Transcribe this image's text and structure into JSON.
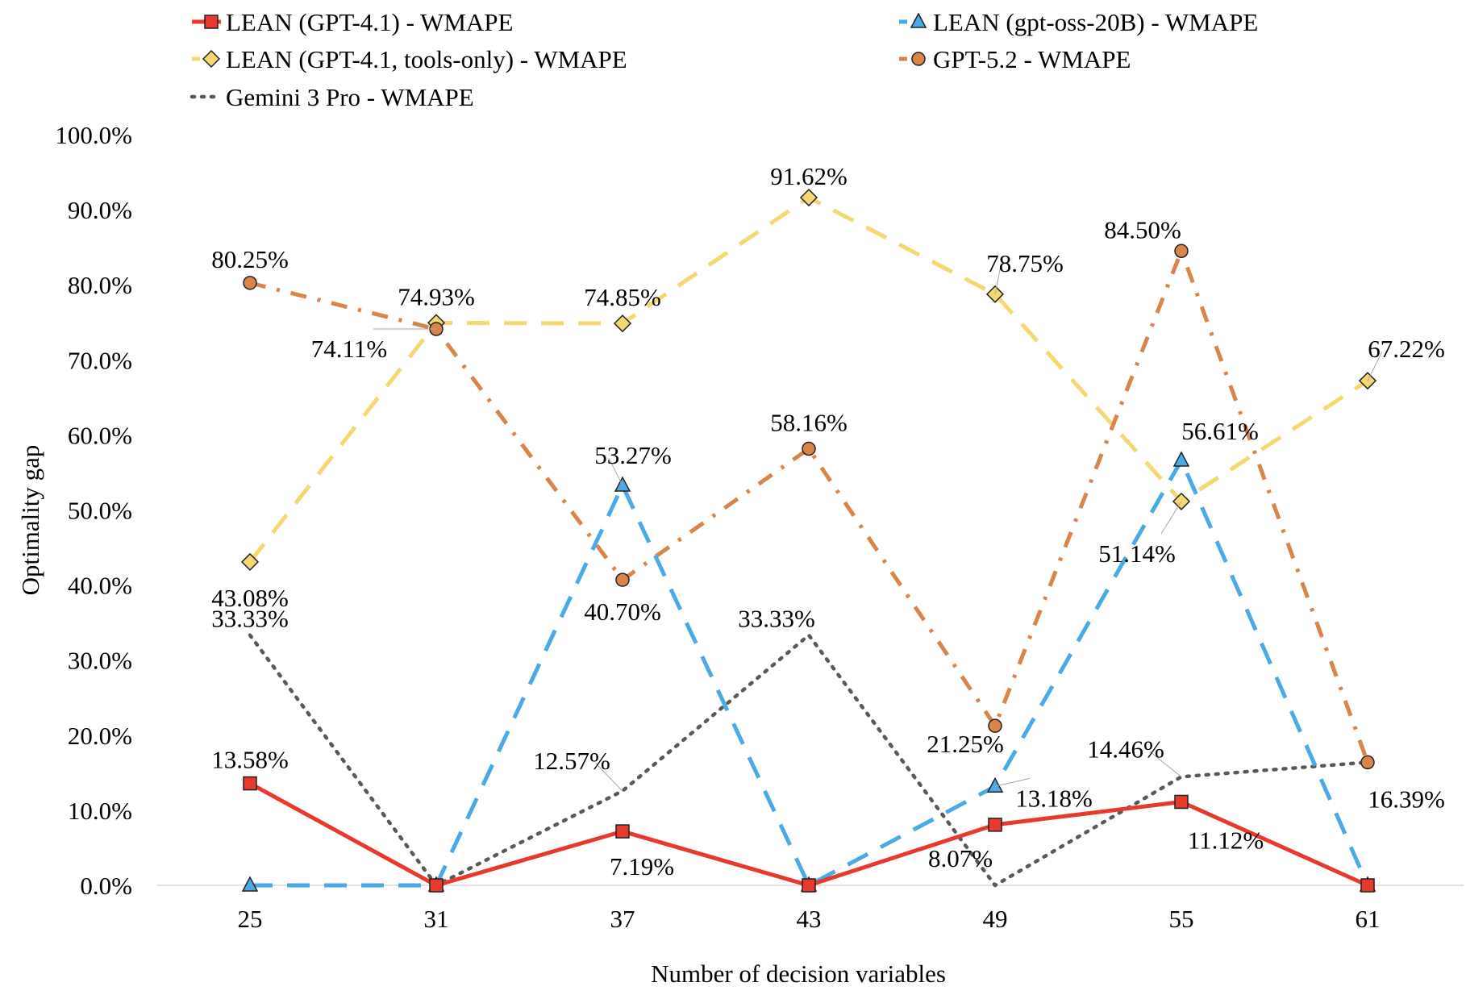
{
  "chart_data": {
    "type": "line",
    "title": "",
    "xlabel": "Number of decision variables",
    "ylabel": "Optimality gap",
    "categories": [
      "25",
      "31",
      "37",
      "43",
      "49",
      "55",
      "61"
    ],
    "ylim": [
      0,
      100
    ],
    "yticks": [
      "0.0%",
      "10.0%",
      "20.0%",
      "30.0%",
      "40.0%",
      "50.0%",
      "60.0%",
      "70.0%",
      "80.0%",
      "90.0%",
      "100.0%"
    ],
    "legend_position": "top",
    "series": [
      {
        "name": "LEAN (GPT-4.1) - WMAPE",
        "values": [
          13.58,
          0,
          7.19,
          0,
          8.07,
          11.12,
          0
        ],
        "labels": [
          "13.58%",
          "",
          "7.19%",
          "",
          "8.07%",
          "11.12%",
          ""
        ],
        "color": "#e8392e",
        "marker": "square",
        "style": "solid"
      },
      {
        "name": "LEAN (gpt-oss-20B) - WMAPE",
        "values": [
          0,
          0,
          53.27,
          0,
          13.18,
          56.61,
          0
        ],
        "labels": [
          "",
          "",
          "53.27%",
          "",
          "13.18%",
          "56.61%",
          ""
        ],
        "color": "#4ba9e6",
        "marker": "triangle",
        "style": "dash"
      },
      {
        "name": "LEAN (GPT-4.1, tools-only) - WMAPE",
        "values": [
          43.08,
          74.93,
          74.85,
          91.62,
          78.75,
          51.14,
          67.22
        ],
        "labels": [
          "43.08%",
          "74.93%",
          "74.85%",
          "91.62%",
          "78.75%",
          "51.14%",
          "67.22%"
        ],
        "color": "#f5d872",
        "marker": "diamond",
        "style": "dash"
      },
      {
        "name": "GPT-5.2 - WMAPE",
        "values": [
          80.25,
          74.11,
          40.7,
          58.16,
          21.25,
          84.5,
          16.39
        ],
        "labels": [
          "80.25%",
          "74.11%",
          "40.70%",
          "58.16%",
          "21.25%",
          "84.50%",
          "16.39%"
        ],
        "color": "#d9844a",
        "marker": "circle",
        "style": "dashdot"
      },
      {
        "name": "Gemini 3 Pro - WMAPE",
        "values": [
          33.33,
          0,
          12.57,
          33.33,
          0,
          14.46,
          16.39
        ],
        "labels": [
          "33.33%",
          "",
          "12.57%",
          "33.33%",
          "",
          "14.46%",
          ""
        ],
        "color": "#595959",
        "marker": "none",
        "style": "dot"
      }
    ]
  }
}
